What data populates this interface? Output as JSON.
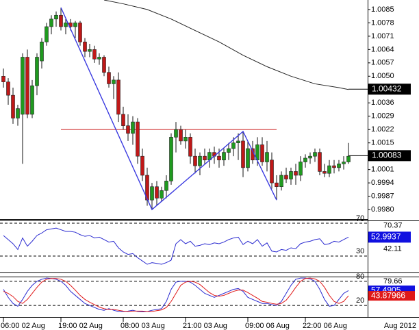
{
  "chart_data": {
    "type": "candlestick",
    "open": [
      1.005,
      1.0047,
      1.004,
      1.0028,
      1.003,
      1.006,
      1.003,
      1.0045,
      1.0058,
      1.0068,
      1.0076,
      1.008,
      1.0082,
      1.0076,
      1.0078,
      1.0076,
      1.0078,
      1.0068,
      1.0063,
      1.0064,
      1.0059,
      1.006,
      1.0052,
      1.0046,
      1.0048,
      1.003,
      1.0024,
      1.002,
      1.0026,
      1.0008,
      0.9998,
      0.9985,
      0.9992,
      0.9986,
      0.999,
      0.9995,
      1.0018,
      1.0022,
      1.0016,
      1.0018,
      1.0008,
      1.0003,
      1.0008,
      1.0006,
      1.001,
      1.0008,
      1.0006,
      1.001,
      1.0012,
      1.0015,
      1.0016,
      1.0002,
      1.0012,
      1.0006,
      1.0014,
      1.0005,
      1.0006,
      0.9994,
      0.9992,
      0.9998,
      0.9996,
      1.0,
      0.9998,
      1.0005,
      1.0007,
      1.0008,
      1.001,
      1.0,
      0.9999,
      1.0003,
      1.0002,
      1.0004,
      1.0005
    ],
    "high": [
      1.0054,
      1.0049,
      1.0044,
      1.0035,
      1.0062,
      1.0064,
      1.0048,
      1.0062,
      1.007,
      1.0078,
      1.0082,
      1.0084,
      1.0086,
      1.008,
      1.008,
      1.0079,
      1.0079,
      1.007,
      1.0067,
      1.0066,
      1.0062,
      1.0061,
      1.0055,
      1.005,
      1.0052,
      1.0034,
      1.003,
      1.0029,
      1.0028,
      1.0012,
      1.0002,
      0.9994,
      0.9995,
      0.9992,
      0.9998,
      1.002,
      1.0026,
      1.0024,
      1.0022,
      1.002,
      1.0012,
      1.001,
      1.0012,
      1.0012,
      1.0013,
      1.0012,
      1.0012,
      1.0015,
      1.0018,
      1.002,
      1.0021,
      1.0016,
      1.0016,
      1.0018,
      1.0018,
      1.0016,
      1.001,
      0.9998,
      1.0,
      1.0002,
      1.0002,
      1.0004,
      1.0008,
      1.0009,
      1.001,
      1.0012,
      1.0012,
      1.0004,
      1.0006,
      1.0006,
      1.0006,
      1.0008,
      1.0015
    ],
    "low": [
      1.0044,
      1.0035,
      1.0025,
      1.0024,
      1.0004,
      1.0028,
      1.0028,
      1.004,
      1.0054,
      1.0066,
      1.0072,
      1.0076,
      1.0074,
      1.0072,
      1.0074,
      1.007,
      1.0066,
      1.006,
      1.006,
      1.0057,
      1.0056,
      1.005,
      1.0044,
      1.0038,
      1.0026,
      1.0022,
      1.0016,
      1.0014,
      1.0004,
      0.9995,
      0.9982,
      0.998,
      0.9982,
      0.9984,
      0.9986,
      0.9993,
      1.001,
      1.0014,
      1.0012,
      1.0004,
      0.9999,
      0.9998,
      1.0004,
      1.0002,
      1.0004,
      1.0002,
      1.0003,
      1.0006,
      1.0008,
      1.0006,
      0.9997,
      1.0,
      1.0004,
      1.0003,
      1.0003,
      1.0,
      0.9991,
      0.9985,
      0.999,
      0.9994,
      0.9993,
      0.9993,
      0.9995,
      1.0002,
      1.0004,
      1.0005,
      0.9998,
      0.9997,
      0.9997,
      0.9999,
      1.0,
      1.0001,
      1.0004
    ],
    "close": [
      1.0047,
      1.004,
      1.0028,
      1.0033,
      1.006,
      1.003,
      1.0045,
      1.006,
      1.0068,
      1.0076,
      1.008,
      1.0082,
      1.0076,
      1.0078,
      1.0076,
      1.0078,
      1.0068,
      1.0063,
      1.0064,
      1.0059,
      1.006,
      1.0052,
      1.0046,
      1.0048,
      1.003,
      1.0024,
      1.002,
      1.0026,
      1.0008,
      0.9998,
      0.9985,
      0.9992,
      0.9986,
      0.999,
      0.9995,
      1.0018,
      1.0022,
      1.0016,
      1.0018,
      1.0008,
      1.0003,
      1.0008,
      1.0006,
      1.001,
      1.0008,
      1.0006,
      1.001,
      1.0012,
      1.0015,
      1.0016,
      1.0002,
      1.0012,
      1.0006,
      1.0014,
      1.0005,
      1.001,
      0.9994,
      0.9992,
      0.9998,
      0.9996,
      1.0,
      0.9998,
      1.0005,
      1.0007,
      1.0008,
      1.001,
      1.0,
      0.9999,
      1.0003,
      1.0002,
      1.0004,
      1.0005,
      1.0008
    ],
    "up_color": "#1f9a1f",
    "down_color": "#c01818",
    "ylim": [
      0.9975,
      1.009
    ],
    "yticks": [
      {
        "value": 1.0085,
        "label": "1.0085"
      },
      {
        "value": 1.0078,
        "label": "1.0078"
      },
      {
        "value": 1.0071,
        "label": "1.0071"
      },
      {
        "value": 1.0064,
        "label": "1.0064"
      },
      {
        "value": 1.0057,
        "label": "1.0057"
      },
      {
        "value": 1.005,
        "label": "1.0050"
      },
      {
        "value": 1.0036,
        "label": "1.0036"
      },
      {
        "value": 1.0029,
        "label": "1.0029"
      },
      {
        "value": 1.0022,
        "label": "1.0022"
      },
      {
        "value": 1.0015,
        "label": "1.0015"
      },
      {
        "value": 1.0001,
        "label": "1.0001"
      },
      {
        "value": 0.9994,
        "label": "0.9994"
      },
      {
        "value": 0.9987,
        "label": "0.9987"
      },
      {
        "value": 0.998,
        "label": "0.9980"
      }
    ],
    "xticks": [
      {
        "value": 0,
        "label": "06:00 02 Aug"
      },
      {
        "value": 12,
        "label": "19:00 02 Aug"
      },
      {
        "value": 25,
        "label": "08:00 03 Aug"
      },
      {
        "value": 38,
        "label": "21:00 03 Aug"
      },
      {
        "value": 51,
        "label": "09:00 06 Aug"
      },
      {
        "value": 63,
        "label": "22:00 06 Aug"
      }
    ],
    "x_corner_label": "Aug 2012",
    "moving_average": {
      "color": "#222222",
      "x": [
        21,
        25,
        30,
        35,
        40,
        45,
        50,
        55,
        60,
        65,
        70,
        72
      ],
      "values": [
        1.009,
        1.0088,
        1.0085,
        1.008,
        1.0074,
        1.0068,
        1.0061,
        1.0055,
        1.005,
        1.0046,
        1.0044,
        1.0043
      ]
    },
    "zigzag": {
      "color": "#3a3ae0",
      "x": [
        12,
        31,
        50,
        57
      ],
      "values": [
        1.0086,
        0.998,
        1.0021,
        0.9985
      ]
    },
    "level": {
      "color": "#d03030",
      "value": 1.0022,
      "x": [
        12,
        57
      ]
    },
    "price_labels": [
      {
        "value": 1.00432,
        "label": "1.00432"
      },
      {
        "value": 1.00083,
        "label": "1.00083"
      }
    ],
    "rsi": {
      "color": "#2a2ad0",
      "ylim": [
        10,
        73.3
      ],
      "levels": [
        70,
        30
      ],
      "values": [
        55,
        50,
        45,
        38,
        52,
        42,
        48,
        55,
        58,
        62,
        63,
        64,
        62,
        60,
        60,
        59,
        56,
        54,
        55,
        52,
        53,
        50,
        47,
        48,
        40,
        35,
        32,
        33,
        28,
        24,
        20,
        22,
        21,
        20,
        22,
        25,
        45,
        50,
        45,
        48,
        42,
        43,
        45,
        44,
        46,
        45,
        47,
        50,
        52,
        53,
        44,
        48,
        45,
        50,
        42,
        46,
        36,
        35,
        38,
        37,
        40,
        39,
        45,
        47,
        48,
        50,
        51,
        44,
        45,
        48,
        47,
        50,
        53
      ],
      "scale_labels": [
        {
          "value": 70.37,
          "label": "70.37"
        },
        {
          "value": 42.11,
          "label": "42.11"
        }
      ],
      "current": {
        "value": 52.9937,
        "label": "52.9937",
        "color": "#1010e0"
      }
    },
    "stochastic": {
      "ylim": [
        -7,
        90
      ],
      "levels": [
        80,
        20
      ],
      "series": [
        {
          "color": "#2a2ad0",
          "values": [
            60,
            40,
            25,
            18,
            35,
            55,
            70,
            80,
            85,
            88,
            87,
            85,
            80,
            70,
            55,
            45,
            35,
            25,
            20,
            15,
            10,
            8,
            12,
            8,
            5,
            5,
            6,
            8,
            5,
            4,
            5,
            8,
            10,
            12,
            30,
            60,
            78,
            80,
            80,
            78,
            70,
            60,
            50,
            45,
            40,
            45,
            50,
            55,
            60,
            62,
            55,
            40,
            35,
            30,
            25,
            25,
            22,
            20,
            30,
            50,
            70,
            85,
            88,
            88,
            86,
            80,
            60,
            35,
            18,
            20,
            35,
            50,
            57
          ]
        },
        {
          "color": "#e01818",
          "values": [
            55,
            50,
            42,
            30,
            25,
            35,
            50,
            65,
            78,
            85,
            87,
            87,
            85,
            80,
            70,
            58,
            45,
            35,
            28,
            22,
            16,
            12,
            10,
            10,
            8,
            6,
            5,
            6,
            6,
            6,
            5,
            5,
            7,
            9,
            15,
            30,
            50,
            70,
            78,
            80,
            78,
            72,
            62,
            52,
            45,
            43,
            45,
            50,
            55,
            58,
            58,
            52,
            45,
            38,
            30,
            28,
            25,
            23,
            25,
            33,
            48,
            65,
            80,
            87,
            88,
            86,
            80,
            65,
            45,
            30,
            25,
            30,
            44
          ]
        }
      ],
      "scale_labels": [
        {
          "value": 79.66,
          "label": "79.66"
        }
      ],
      "current": [
        {
          "value": 57.4905,
          "label": "57.4905",
          "color": "#1010e0"
        },
        {
          "value": 43.87966,
          "label": "43.87966",
          "color": "#e01818"
        }
      ]
    }
  }
}
